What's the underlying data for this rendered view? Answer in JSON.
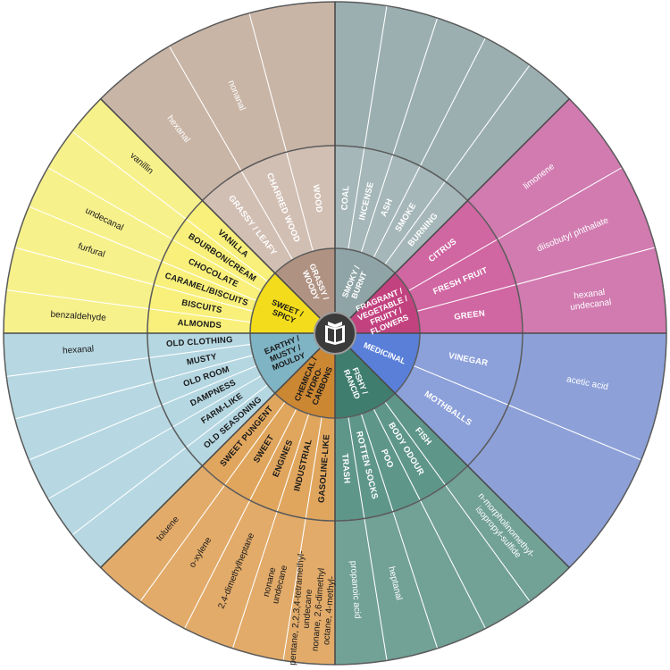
{
  "categories": [
    {
      "label": [
        "SMOKY /",
        "BURNT"
      ],
      "inner_color": "#8fa4a6",
      "ring_color": "#a6b7b9",
      "outer_color": "#9bafb1",
      "text_color": "#ffffff",
      "descriptors": [
        {
          "label": "COAL",
          "chemicals": []
        },
        {
          "label": "INCENSE",
          "chemicals": []
        },
        {
          "label": "ASH",
          "chemicals": []
        },
        {
          "label": "SMOKE",
          "chemicals": []
        },
        {
          "label": "BURNING",
          "chemicals": []
        }
      ]
    },
    {
      "label": [
        "FRAGRANT /",
        "VEGETABLE /",
        "FRUITY /",
        "FLOWERS"
      ],
      "inner_color": "#c2427f",
      "ring_color": "#d066a2",
      "outer_color": "#d17bb0",
      "text_color": "#ffffff",
      "descriptors": [
        {
          "label": "CITRUS",
          "chemicals": [
            "limonene"
          ]
        },
        {
          "label": "FRESH FRUIT",
          "chemicals": [
            "diisobutyl phthalate"
          ]
        },
        {
          "label": "GREEN",
          "chemicals": [
            "hexanal",
            "undecanal"
          ]
        }
      ]
    },
    {
      "label": [
        "MEDICINAL"
      ],
      "inner_color": "#5a7fd9",
      "ring_color": "#8ca0da",
      "outer_color": "#8da1d8",
      "text_color": "#ffffff",
      "descriptors": [
        {
          "label": "VINEGAR",
          "chemicals": [
            "acetic acid"
          ]
        },
        {
          "label": "MOTHBALLS",
          "chemicals": []
        }
      ]
    },
    {
      "label": [
        "FISHY /",
        "RANCID"
      ],
      "inner_color": "#3f7d6e",
      "ring_color": "#5f968a",
      "outer_color": "#72a196",
      "text_color": "#ffffff",
      "descriptors": [
        {
          "label": "FISH",
          "chemicals": [
            "n-morpholinomethyl-",
            "isopropyl-sulfide"
          ]
        },
        {
          "label": "BODY ODOUR",
          "chemicals": []
        },
        {
          "label": "POO",
          "chemicals": []
        },
        {
          "label": "ROTTEN SOCKS",
          "chemicals": [
            "heptanal"
          ]
        },
        {
          "label": "TRASH",
          "chemicals": [
            "propanoic acid"
          ]
        }
      ]
    },
    {
      "label": [
        "CHEMICAL /",
        "HYDRO-",
        "CARBONS"
      ],
      "inner_color": "#cc8733",
      "ring_color": "#e0a65e",
      "outer_color": "#e2ab6a",
      "text_color": "#1a1a1a",
      "descriptors": [
        {
          "label": "GASOLINE-LIKE",
          "chemicals": [
            "pentane, 2,2,3,4-tetramethyl-",
            "undecane",
            "nonane, 2,6-dimethyl",
            "octane, 4-methyl-"
          ]
        },
        {
          "label": "INDUSTRIAL",
          "chemicals": [
            "nonane",
            "undecane"
          ]
        },
        {
          "label": "ENGINES",
          "chemicals": [
            "2,4-dimethylheptane"
          ]
        },
        {
          "label": "SWEET",
          "chemicals": [
            "o-xylene"
          ]
        },
        {
          "label": "SWEET PUNGENT",
          "chemicals": [
            "toluene"
          ]
        }
      ]
    },
    {
      "label": [
        "EARTHY /",
        "MUSTY /",
        "MOULDY"
      ],
      "inner_color": "#7fb4c4",
      "ring_color": "#b5d7e2",
      "outer_color": "#b7d8e2",
      "text_color": "#1a1a1a",
      "descriptors": [
        {
          "label": "OLD SEASONING",
          "chemicals": []
        },
        {
          "label": "FARM-LIKE",
          "chemicals": []
        },
        {
          "label": "DAMPNESS",
          "chemicals": []
        },
        {
          "label": "OLD ROOM",
          "chemicals": []
        },
        {
          "label": "MUSTY",
          "chemicals": []
        },
        {
          "label": "OLD CLOTHING",
          "chemicals": [
            "hexanal"
          ]
        }
      ]
    },
    {
      "label": [
        "SWEET /",
        "SPICY"
      ],
      "inner_color": "#f2dc1c",
      "ring_color": "#f8f07a",
      "outer_color": "#f7f18c",
      "text_color": "#1a1a1a",
      "descriptors": [
        {
          "label": "ALMONDS",
          "chemicals": [
            "benzaldehyde"
          ]
        },
        {
          "label": "BISCUITS",
          "chemicals": []
        },
        {
          "label": "CARAMEL/BISCUITS",
          "chemicals": [
            "furfural"
          ]
        },
        {
          "label": "CHOCOLATE",
          "chemicals": [
            "undecanal"
          ]
        },
        {
          "label": "BOURBON/CREAM",
          "chemicals": []
        },
        {
          "label": "VANILLA",
          "chemicals": [
            "vanillin"
          ]
        }
      ]
    },
    {
      "label": [
        "GRASSY /",
        "WOODY"
      ],
      "inner_color": "#b09282",
      "ring_color": "#d2bfb3",
      "outer_color": "#c9b5a6",
      "text_color": "#ffffff",
      "descriptors": [
        {
          "label": "GRASSY / LEAFY",
          "chemicals": [
            "hexanal"
          ]
        },
        {
          "label": "CHARRED WOOD",
          "chemicals": [
            "nonanal"
          ]
        },
        {
          "label": "WOOD",
          "chemicals": []
        }
      ]
    }
  ]
}
